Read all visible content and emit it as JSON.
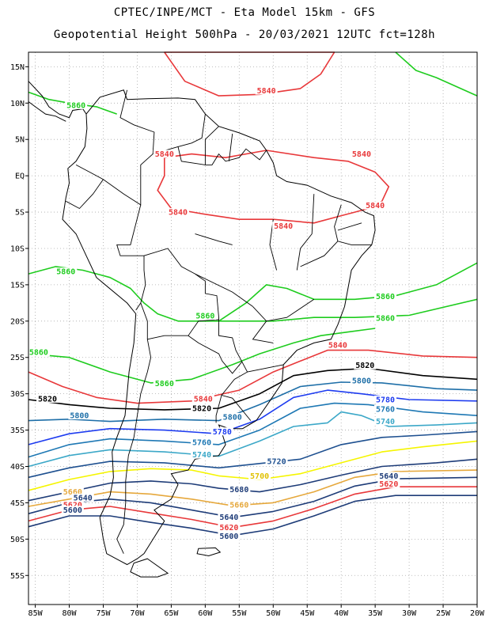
{
  "title": {
    "line1": "CPTEC/INPE/MCT -  Eta Model 15km - GFS",
    "line2": "Geopotential Height 500hPa - 20/03/2021 12UTC fct=128h"
  },
  "axes": {
    "lon_labels": [
      "85W",
      "80W",
      "75W",
      "70W",
      "65W",
      "60W",
      "55W",
      "50W",
      "45W",
      "40W",
      "35W",
      "30W",
      "25W",
      "20W"
    ],
    "lat_labels": [
      "15N",
      "10N",
      "5N",
      "EQ",
      "5S",
      "10S",
      "15S",
      "20S",
      "25S",
      "30S",
      "35S",
      "40S",
      "45S",
      "50S",
      "55S"
    ],
    "lon_range": [
      -86,
      -20
    ],
    "lat_range": [
      -59,
      17
    ]
  },
  "colors": {
    "c5840": "#e8383a",
    "c5860": "#1ecc1e",
    "c5820": "#000000",
    "c5800": "#1e6fa8",
    "c5780": "#1e3cf0",
    "c5760": "#1e78b4",
    "c5740": "#3ca8c8",
    "c5720": "#1e5090",
    "c5700": "#f5f500",
    "c5680": "#1e3c78",
    "c5660": "#e6a83c",
    "land": "#000000"
  },
  "contour_labels": [
    {
      "text": "5840",
      "lon": -51,
      "lat": 11.5,
      "color": "#e8383a"
    },
    {
      "text": "5860",
      "lon": -79,
      "lat": 9.5,
      "color": "#1ecc1e"
    },
    {
      "text": "5840",
      "lon": -66,
      "lat": 2.8,
      "color": "#e8383a"
    },
    {
      "text": "5840",
      "lon": -37,
      "lat": 2.8,
      "color": "#e8383a"
    },
    {
      "text": "5840",
      "lon": -64,
      "lat": -5.2,
      "color": "#e8383a"
    },
    {
      "text": "5840",
      "lon": -48.5,
      "lat": -7.1,
      "color": "#e8383a"
    },
    {
      "text": "5840",
      "lon": -35,
      "lat": -4.3,
      "color": "#e8383a"
    },
    {
      "text": "5860",
      "lon": -80.5,
      "lat": -13.4,
      "color": "#1ecc1e"
    },
    {
      "text": "5860",
      "lon": -60,
      "lat": -19.5,
      "color": "#1ecc1e"
    },
    {
      "text": "5860",
      "lon": -33.5,
      "lat": -16.8,
      "color": "#1ecc1e"
    },
    {
      "text": "5860",
      "lon": -33.5,
      "lat": -19.8,
      "color": "#1ecc1e"
    },
    {
      "text": "5860",
      "lon": -84.5,
      "lat": -24.5,
      "color": "#1ecc1e"
    },
    {
      "text": "5860",
      "lon": -66,
      "lat": -28.8,
      "color": "#1ecc1e"
    },
    {
      "text": "5840",
      "lon": -40.5,
      "lat": -23.5,
      "color": "#e8383a"
    },
    {
      "text": "5840",
      "lon": -60.3,
      "lat": -30.9,
      "color": "#e8383a"
    },
    {
      "text": "5820",
      "lon": -83.2,
      "lat": -30.9,
      "color": "#000000"
    },
    {
      "text": "5820",
      "lon": -60.5,
      "lat": -32.2,
      "color": "#000000"
    },
    {
      "text": "5820",
      "lon": -36.5,
      "lat": -26.3,
      "color": "#000000"
    },
    {
      "text": "5800",
      "lon": -37,
      "lat": -28.4,
      "color": "#1e6fa8"
    },
    {
      "text": "5800",
      "lon": -78.5,
      "lat": -33.2,
      "color": "#1e6fa8"
    },
    {
      "text": "5800",
      "lon": -56,
      "lat": -33.4,
      "color": "#1e6fa8"
    },
    {
      "text": "5780",
      "lon": -33.5,
      "lat": -31,
      "color": "#1e3cf0"
    },
    {
      "text": "5760",
      "lon": -33.5,
      "lat": -32.3,
      "color": "#1e78b4"
    },
    {
      "text": "5740",
      "lon": -33.5,
      "lat": -34,
      "color": "#3ca8c8"
    },
    {
      "text": "5780",
      "lon": -57.5,
      "lat": -35.4,
      "color": "#1e3cf0"
    },
    {
      "text": "5760",
      "lon": -60.5,
      "lat": -36.9,
      "color": "#1e78b4"
    },
    {
      "text": "5740",
      "lon": -60.5,
      "lat": -38.6,
      "color": "#3ca8c8"
    },
    {
      "text": "5720",
      "lon": -49.5,
      "lat": -39.5,
      "color": "#1e5090"
    },
    {
      "text": "5700",
      "lon": -52,
      "lat": -41.5,
      "color": "#e0c000"
    },
    {
      "text": "5680",
      "lon": -55,
      "lat": -43.4,
      "color": "#1e3c78"
    },
    {
      "text": "5660",
      "lon": -55,
      "lat": -45.5,
      "color": "#e6a83c"
    },
    {
      "text": "5640",
      "lon": -56.5,
      "lat": -47.2,
      "color": "#1e3c78"
    },
    {
      "text": "5620",
      "lon": -56.5,
      "lat": -48.6,
      "color": "#e8383a"
    },
    {
      "text": "5600",
      "lon": -56.5,
      "lat": -49.8,
      "color": "#1e3c78"
    },
    {
      "text": "5660",
      "lon": -79.5,
      "lat": -43.7,
      "color": "#e6a83c"
    },
    {
      "text": "5640",
      "lon": -78,
      "lat": -44.5,
      "color": "#1e3c78"
    },
    {
      "text": "5620",
      "lon": -79.5,
      "lat": -45.5,
      "color": "#e8383a"
    },
    {
      "text": "5600",
      "lon": -79.5,
      "lat": -46.2,
      "color": "#1e3c78"
    },
    {
      "text": "5640",
      "lon": -33,
      "lat": -41.5,
      "color": "#1e3c78"
    },
    {
      "text": "5620",
      "lon": -33,
      "lat": -42.6,
      "color": "#e8383a"
    }
  ]
}
